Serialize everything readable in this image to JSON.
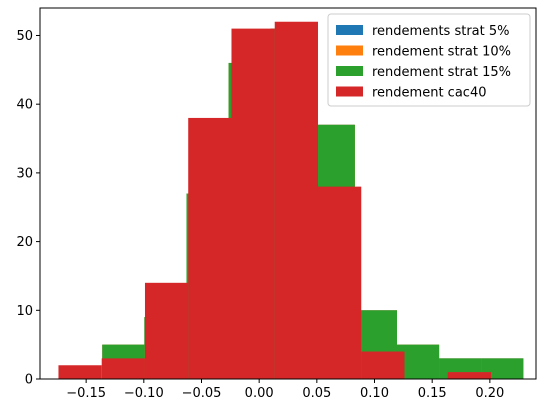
{
  "chart_data": {
    "type": "bar",
    "subtype": "histogram-overlay",
    "title": "",
    "xlabel": "",
    "ylabel": "",
    "xlim": [
      -0.19,
      0.24
    ],
    "ylim": [
      0,
      54
    ],
    "xticks": [
      -0.15,
      -0.1,
      -0.05,
      0.0,
      0.05,
      0.1,
      0.15,
      0.2
    ],
    "xtick_labels": [
      "−0.15",
      "−0.10",
      "−0.05",
      "0.00",
      "0.05",
      "0.10",
      "0.15",
      "0.20"
    ],
    "yticks": [
      0,
      10,
      20,
      30,
      40,
      50
    ],
    "ytick_labels": [
      "0",
      "10",
      "20",
      "30",
      "40",
      "50"
    ],
    "grid": false,
    "legend_position": "top-right",
    "series": [
      {
        "name": "rendements strat 5%",
        "color": "#1f77b4",
        "bins": [
          {
            "x0": -0.136,
            "x1": -0.0995,
            "count": 5
          },
          {
            "x0": -0.0995,
            "x1": -0.063,
            "count": 9
          },
          {
            "x0": -0.063,
            "x1": -0.0265,
            "count": 27
          },
          {
            "x0": -0.0265,
            "x1": 0.01,
            "count": 46
          },
          {
            "x0": 0.01,
            "x1": 0.0465,
            "count": 51
          },
          {
            "x0": 0.0465,
            "x1": 0.083,
            "count": 37
          },
          {
            "x0": 0.083,
            "x1": 0.1195,
            "count": 10
          },
          {
            "x0": 0.1195,
            "x1": 0.156,
            "count": 5
          },
          {
            "x0": 0.156,
            "x1": 0.1925,
            "count": 3
          },
          {
            "x0": 0.1925,
            "x1": 0.229,
            "count": 3
          }
        ]
      },
      {
        "name": "rendement strat 10%",
        "color": "#ff7f0e",
        "bins": [
          {
            "x0": -0.136,
            "x1": -0.0995,
            "count": 5
          },
          {
            "x0": -0.0995,
            "x1": -0.063,
            "count": 9
          },
          {
            "x0": -0.063,
            "x1": -0.0265,
            "count": 27
          },
          {
            "x0": -0.0265,
            "x1": 0.01,
            "count": 46
          },
          {
            "x0": 0.01,
            "x1": 0.0465,
            "count": 51
          },
          {
            "x0": 0.0465,
            "x1": 0.083,
            "count": 37
          },
          {
            "x0": 0.083,
            "x1": 0.1195,
            "count": 10
          },
          {
            "x0": 0.1195,
            "x1": 0.156,
            "count": 5
          },
          {
            "x0": 0.156,
            "x1": 0.1925,
            "count": 3
          },
          {
            "x0": 0.1925,
            "x1": 0.229,
            "count": 3
          }
        ]
      },
      {
        "name": "rendement strat 15%",
        "color": "#2ca02c",
        "bins": [
          {
            "x0": -0.136,
            "x1": -0.0995,
            "count": 5
          },
          {
            "x0": -0.0995,
            "x1": -0.063,
            "count": 9
          },
          {
            "x0": -0.063,
            "x1": -0.0265,
            "count": 27
          },
          {
            "x0": -0.0265,
            "x1": 0.01,
            "count": 46
          },
          {
            "x0": 0.01,
            "x1": 0.0465,
            "count": 51
          },
          {
            "x0": 0.0465,
            "x1": 0.083,
            "count": 37
          },
          {
            "x0": 0.083,
            "x1": 0.1195,
            "count": 10
          },
          {
            "x0": 0.1195,
            "x1": 0.156,
            "count": 5
          },
          {
            "x0": 0.156,
            "x1": 0.1925,
            "count": 3
          },
          {
            "x0": 0.1925,
            "x1": 0.229,
            "count": 3
          }
        ]
      },
      {
        "name": "rendement cac40",
        "color": "#d62728",
        "bins": [
          {
            "x0": -0.174,
            "x1": -0.1365,
            "count": 2
          },
          {
            "x0": -0.1365,
            "x1": -0.099,
            "count": 3
          },
          {
            "x0": -0.099,
            "x1": -0.0615,
            "count": 14
          },
          {
            "x0": -0.0615,
            "x1": -0.024,
            "count": 38
          },
          {
            "x0": -0.024,
            "x1": 0.0135,
            "count": 51
          },
          {
            "x0": 0.0135,
            "x1": 0.051,
            "count": 52
          },
          {
            "x0": 0.051,
            "x1": 0.0885,
            "count": 28
          },
          {
            "x0": 0.0885,
            "x1": 0.126,
            "count": 4
          },
          {
            "x0": 0.126,
            "x1": 0.1635,
            "count": 0
          },
          {
            "x0": 0.1635,
            "x1": 0.201,
            "count": 1
          }
        ]
      }
    ]
  }
}
